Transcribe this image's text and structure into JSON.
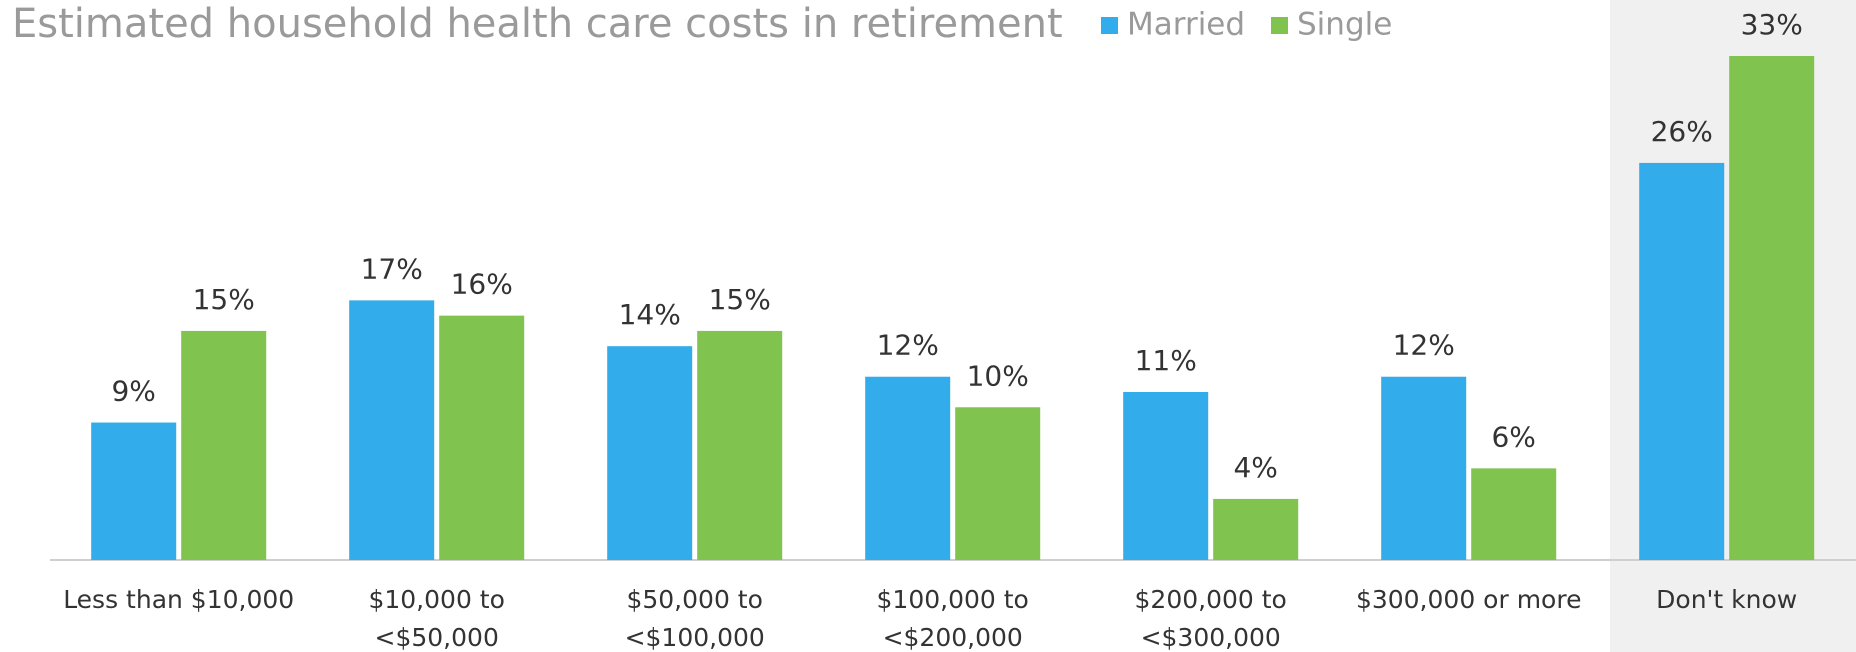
{
  "chart_data": {
    "type": "bar",
    "title": "Estimated household health care costs in retirement",
    "categories": [
      [
        "Less than $10,000"
      ],
      [
        "$10,000 to",
        "<$50,000"
      ],
      [
        "$50,000 to",
        "<$100,000"
      ],
      [
        "$100,000 to",
        "<$200,000"
      ],
      [
        "$200,000 to",
        "<$300,000"
      ],
      [
        "$300,000 or more"
      ],
      [
        "Don't know"
      ]
    ],
    "series": [
      {
        "name": "Married",
        "color": "#32acea",
        "values": [
          9,
          17,
          14,
          12,
          11,
          12,
          26
        ],
        "value_labels": [
          "9%",
          "17%",
          "14%",
          "12%",
          "11%",
          "12%",
          "26%"
        ]
      },
      {
        "name": "Single",
        "color": "#80c34f",
        "values": [
          15,
          16,
          15,
          10,
          4,
          6,
          33
        ],
        "value_labels": [
          "15%",
          "16%",
          "15%",
          "10%",
          "4%",
          "6%",
          "33%"
        ]
      }
    ]
  }
}
